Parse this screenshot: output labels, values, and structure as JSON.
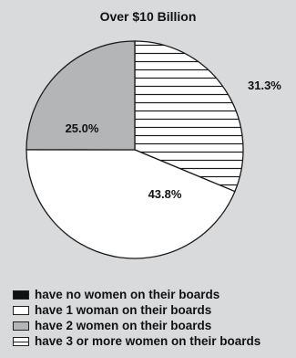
{
  "chart_data": {
    "type": "pie",
    "title": "Over $10 Billion",
    "slices": [
      {
        "label": "have no women on their boards",
        "value": 0,
        "display": "",
        "fill": "#111111",
        "pattern": "solid"
      },
      {
        "label": "have 1 woman on their boards",
        "value": 43.8,
        "display": "43.8%",
        "fill": "#ffffff",
        "pattern": "solid"
      },
      {
        "label": "have 2 women on their boards",
        "value": 25.0,
        "display": "25.0%",
        "fill": "#b4b5b6",
        "pattern": "solid"
      },
      {
        "label": "have 3 or more women on their boards",
        "value": 31.3,
        "display": "31.3%",
        "fill": "#ffffff",
        "pattern": "horizontal-lines"
      }
    ],
    "legend_position": "bottom-left"
  }
}
